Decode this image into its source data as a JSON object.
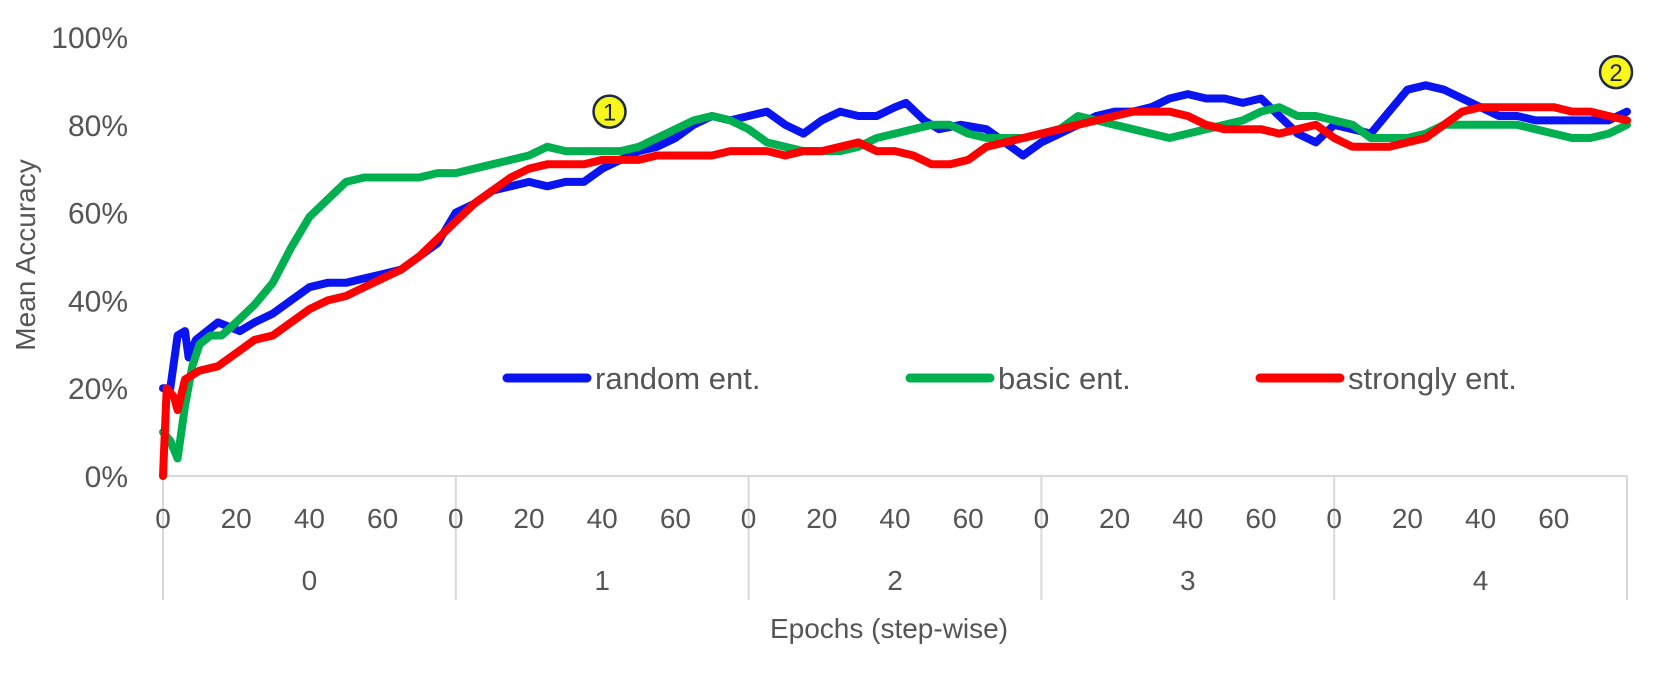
{
  "chart_data": {
    "type": "line",
    "xlabel": "Epochs (step-wise)",
    "ylabel": "Mean Accuracy",
    "ylim": [
      0,
      100
    ],
    "y_ticks": [
      "0%",
      "20%",
      "40%",
      "60%",
      "80%",
      "100%"
    ],
    "x_range": [
      0,
      400
    ],
    "steps_per_epoch": 80,
    "step_tick_labels": [
      "0",
      "20",
      "40",
      "60"
    ],
    "epoch_labels": [
      "0",
      "1",
      "2",
      "3",
      "4"
    ],
    "legend_position": "inside-middle",
    "series": [
      {
        "name": "random ent.",
        "color": "#0a14f0",
        "points": [
          [
            0,
            20
          ],
          [
            2,
            20
          ],
          [
            4,
            32
          ],
          [
            6,
            33
          ],
          [
            7,
            27
          ],
          [
            9,
            31
          ],
          [
            12,
            33
          ],
          [
            15,
            35
          ],
          [
            18,
            34
          ],
          [
            21,
            33
          ],
          [
            25,
            35
          ],
          [
            30,
            37
          ],
          [
            35,
            40
          ],
          [
            40,
            43
          ],
          [
            45,
            44
          ],
          [
            50,
            44
          ],
          [
            55,
            45
          ],
          [
            60,
            46
          ],
          [
            65,
            47
          ],
          [
            70,
            50
          ],
          [
            75,
            53
          ],
          [
            80,
            60
          ],
          [
            85,
            62
          ],
          [
            90,
            65
          ],
          [
            95,
            66
          ],
          [
            100,
            67
          ],
          [
            105,
            66
          ],
          [
            110,
            67
          ],
          [
            115,
            67
          ],
          [
            120,
            70
          ],
          [
            125,
            72
          ],
          [
            130,
            74
          ],
          [
            135,
            75
          ],
          [
            140,
            77
          ],
          [
            145,
            80
          ],
          [
            150,
            82
          ],
          [
            155,
            81
          ],
          [
            160,
            82
          ],
          [
            165,
            83
          ],
          [
            170,
            80
          ],
          [
            175,
            78
          ],
          [
            180,
            81
          ],
          [
            185,
            83
          ],
          [
            190,
            82
          ],
          [
            195,
            82
          ],
          [
            200,
            84
          ],
          [
            203,
            85
          ],
          [
            208,
            81
          ],
          [
            212,
            79
          ],
          [
            218,
            80
          ],
          [
            225,
            79
          ],
          [
            230,
            76
          ],
          [
            235,
            73
          ],
          [
            240,
            76
          ],
          [
            245,
            78
          ],
          [
            250,
            80
          ],
          [
            255,
            82
          ],
          [
            260,
            83
          ],
          [
            265,
            83
          ],
          [
            270,
            84
          ],
          [
            275,
            86
          ],
          [
            280,
            87
          ],
          [
            285,
            86
          ],
          [
            290,
            86
          ],
          [
            295,
            85
          ],
          [
            300,
            86
          ],
          [
            305,
            82
          ],
          [
            310,
            78
          ],
          [
            315,
            76
          ],
          [
            320,
            80
          ],
          [
            325,
            79
          ],
          [
            330,
            78
          ],
          [
            335,
            83
          ],
          [
            340,
            88
          ],
          [
            345,
            89
          ],
          [
            350,
            88
          ],
          [
            355,
            86
          ],
          [
            360,
            84
          ],
          [
            365,
            82
          ],
          [
            370,
            82
          ],
          [
            375,
            81
          ],
          [
            380,
            81
          ],
          [
            385,
            81
          ],
          [
            390,
            81
          ],
          [
            395,
            81
          ],
          [
            400,
            83
          ]
        ]
      },
      {
        "name": "basic ent.",
        "color": "#00b050",
        "points": [
          [
            0,
            10
          ],
          [
            2,
            8
          ],
          [
            4,
            4
          ],
          [
            6,
            16
          ],
          [
            8,
            25
          ],
          [
            10,
            30
          ],
          [
            13,
            32
          ],
          [
            16,
            32
          ],
          [
            20,
            35
          ],
          [
            25,
            39
          ],
          [
            30,
            44
          ],
          [
            35,
            52
          ],
          [
            40,
            59
          ],
          [
            45,
            63
          ],
          [
            50,
            67
          ],
          [
            55,
            68
          ],
          [
            60,
            68
          ],
          [
            65,
            68
          ],
          [
            70,
            68
          ],
          [
            75,
            69
          ],
          [
            80,
            69
          ],
          [
            85,
            70
          ],
          [
            90,
            71
          ],
          [
            95,
            72
          ],
          [
            100,
            73
          ],
          [
            105,
            75
          ],
          [
            110,
            74
          ],
          [
            115,
            74
          ],
          [
            120,
            74
          ],
          [
            125,
            74
          ],
          [
            130,
            75
          ],
          [
            135,
            77
          ],
          [
            140,
            79
          ],
          [
            145,
            81
          ],
          [
            150,
            82
          ],
          [
            155,
            81
          ],
          [
            160,
            79
          ],
          [
            165,
            76
          ],
          [
            170,
            75
          ],
          [
            175,
            74
          ],
          [
            180,
            74
          ],
          [
            185,
            74
          ],
          [
            190,
            75
          ],
          [
            195,
            77
          ],
          [
            200,
            78
          ],
          [
            205,
            79
          ],
          [
            210,
            80
          ],
          [
            215,
            80
          ],
          [
            220,
            78
          ],
          [
            225,
            77
          ],
          [
            230,
            77
          ],
          [
            235,
            77
          ],
          [
            240,
            78
          ],
          [
            245,
            79
          ],
          [
            250,
            82
          ],
          [
            255,
            81
          ],
          [
            260,
            80
          ],
          [
            265,
            79
          ],
          [
            270,
            78
          ],
          [
            275,
            77
          ],
          [
            280,
            78
          ],
          [
            285,
            79
          ],
          [
            290,
            80
          ],
          [
            295,
            81
          ],
          [
            300,
            83
          ],
          [
            305,
            84
          ],
          [
            310,
            82
          ],
          [
            315,
            82
          ],
          [
            320,
            81
          ],
          [
            325,
            80
          ],
          [
            330,
            77
          ],
          [
            335,
            77
          ],
          [
            340,
            77
          ],
          [
            345,
            78
          ],
          [
            350,
            80
          ],
          [
            355,
            80
          ],
          [
            360,
            80
          ],
          [
            365,
            80
          ],
          [
            370,
            80
          ],
          [
            375,
            79
          ],
          [
            380,
            78
          ],
          [
            385,
            77
          ],
          [
            390,
            77
          ],
          [
            395,
            78
          ],
          [
            400,
            80
          ]
        ]
      },
      {
        "name": "strongly ent.",
        "color": "#ff0000",
        "points": [
          [
            0,
            0
          ],
          [
            1,
            20
          ],
          [
            3,
            18
          ],
          [
            4,
            15
          ],
          [
            6,
            22
          ],
          [
            10,
            24
          ],
          [
            15,
            25
          ],
          [
            20,
            28
          ],
          [
            25,
            31
          ],
          [
            30,
            32
          ],
          [
            35,
            35
          ],
          [
            40,
            38
          ],
          [
            45,
            40
          ],
          [
            50,
            41
          ],
          [
            55,
            43
          ],
          [
            60,
            45
          ],
          [
            65,
            47
          ],
          [
            70,
            50
          ],
          [
            75,
            54
          ],
          [
            80,
            58
          ],
          [
            85,
            62
          ],
          [
            90,
            65
          ],
          [
            95,
            68
          ],
          [
            100,
            70
          ],
          [
            105,
            71
          ],
          [
            110,
            71
          ],
          [
            115,
            71
          ],
          [
            120,
            72
          ],
          [
            125,
            72
          ],
          [
            130,
            72
          ],
          [
            135,
            73
          ],
          [
            140,
            73
          ],
          [
            145,
            73
          ],
          [
            150,
            73
          ],
          [
            155,
            74
          ],
          [
            160,
            74
          ],
          [
            165,
            74
          ],
          [
            170,
            73
          ],
          [
            175,
            74
          ],
          [
            180,
            74
          ],
          [
            185,
            75
          ],
          [
            190,
            76
          ],
          [
            195,
            74
          ],
          [
            200,
            74
          ],
          [
            205,
            73
          ],
          [
            210,
            71
          ],
          [
            215,
            71
          ],
          [
            220,
            72
          ],
          [
            225,
            75
          ],
          [
            230,
            76
          ],
          [
            235,
            77
          ],
          [
            240,
            78
          ],
          [
            245,
            79
          ],
          [
            250,
            80
          ],
          [
            255,
            81
          ],
          [
            260,
            82
          ],
          [
            265,
            83
          ],
          [
            270,
            83
          ],
          [
            275,
            83
          ],
          [
            280,
            82
          ],
          [
            285,
            80
          ],
          [
            290,
            79
          ],
          [
            295,
            79
          ],
          [
            300,
            79
          ],
          [
            305,
            78
          ],
          [
            310,
            79
          ],
          [
            315,
            80
          ],
          [
            320,
            77
          ],
          [
            325,
            75
          ],
          [
            330,
            75
          ],
          [
            335,
            75
          ],
          [
            340,
            76
          ],
          [
            345,
            77
          ],
          [
            350,
            80
          ],
          [
            355,
            83
          ],
          [
            360,
            84
          ],
          [
            365,
            84
          ],
          [
            370,
            84
          ],
          [
            375,
            84
          ],
          [
            380,
            84
          ],
          [
            385,
            83
          ],
          [
            390,
            83
          ],
          [
            395,
            82
          ],
          [
            400,
            81
          ]
        ]
      }
    ],
    "annotations": [
      {
        "label": "1",
        "x": 122,
        "y": 83
      },
      {
        "label": "2",
        "x": 397,
        "y": 92
      }
    ]
  }
}
